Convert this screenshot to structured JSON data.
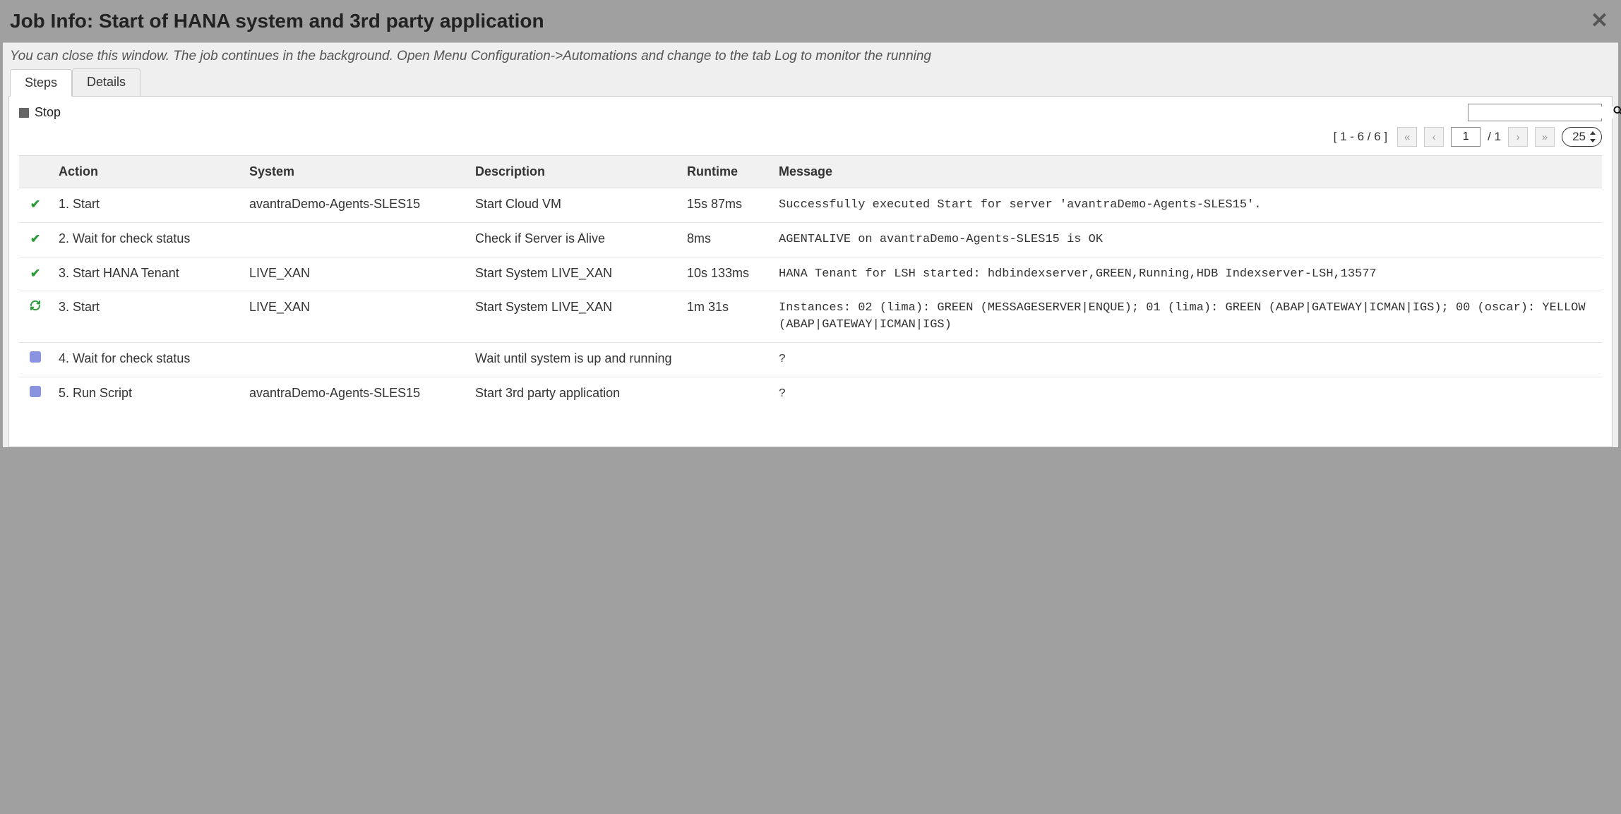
{
  "dialog": {
    "title": "Job Info: Start of HANA system and 3rd party application",
    "subtitle": "You can close this window. The job continues in the background. Open Menu Configuration->Automations and change to the tab Log to monitor the running"
  },
  "tabs": {
    "steps": "Steps",
    "details": "Details"
  },
  "toolbar": {
    "stop_label": "Stop"
  },
  "pager": {
    "range_text": "[ 1 - 6 / 6 ]",
    "current_page": "1",
    "total_pages_label": "/ 1",
    "page_size": "25"
  },
  "table": {
    "headers": {
      "action": "Action",
      "system": "System",
      "description": "Description",
      "runtime": "Runtime",
      "message": "Message"
    },
    "rows": [
      {
        "status": "check",
        "action": "1. Start",
        "system": "avantraDemo-Agents-SLES15",
        "description": "Start Cloud VM",
        "runtime": "15s 87ms",
        "message": "Successfully executed Start for server 'avantraDemo-Agents-SLES15'."
      },
      {
        "status": "check",
        "action": "2. Wait for check status",
        "system": "",
        "description": "Check if Server is Alive",
        "runtime": "8ms",
        "message": "AGENTALIVE on avantraDemo-Agents-SLES15 is OK"
      },
      {
        "status": "check",
        "action": "3. Start HANA Tenant",
        "system": "LIVE_XAN",
        "description": "Start System LIVE_XAN",
        "runtime": "10s 133ms",
        "message": "HANA Tenant for LSH started: hdbindexserver,GREEN,Running,HDB Indexserver-LSH,13577"
      },
      {
        "status": "refresh",
        "action": "3. Start",
        "system": "LIVE_XAN",
        "description": "Start System LIVE_XAN",
        "runtime": "1m 31s",
        "message": "Instances: 02 (lima): GREEN (MESSAGESERVER|ENQUE); 01 (lima): GREEN (ABAP|GATEWAY|ICMAN|IGS); 00 (oscar): YELLOW (ABAP|GATEWAY|ICMAN|IGS)"
      },
      {
        "status": "pending",
        "action": "4. Wait for check status",
        "system": "",
        "description": "Wait until system is up and running",
        "runtime": "",
        "message": "?"
      },
      {
        "status": "pending",
        "action": "5. Run Script",
        "system": "avantraDemo-Agents-SLES15",
        "description": "Start 3rd party application",
        "runtime": "",
        "message": "?"
      }
    ]
  }
}
